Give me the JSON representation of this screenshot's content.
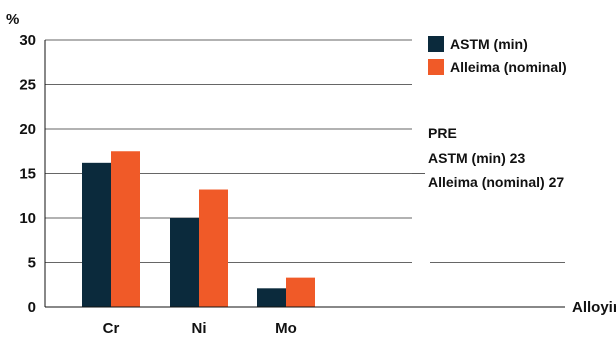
{
  "chart_data": {
    "type": "bar",
    "ylabel": "%",
    "xlabel": "Alloying elements",
    "ylim": [
      0,
      30
    ],
    "yticks": [
      0,
      5,
      10,
      15,
      20,
      25,
      30
    ],
    "categories": [
      "Cr",
      "Ni",
      "Mo"
    ],
    "series": [
      {
        "name": "ASTM (min)",
        "color": "#0b2a3c",
        "values": [
          16.2,
          10,
          2.1
        ]
      },
      {
        "name": "Alleima (nominal)",
        "color": "#f05a28",
        "values": [
          17.5,
          13.2,
          3.3
        ]
      }
    ],
    "grid": true,
    "legend": "top-right",
    "annotation": {
      "title": "PRE",
      "lines": [
        "ASTM (min) 23",
        "Alleima (nominal) 27"
      ]
    }
  }
}
